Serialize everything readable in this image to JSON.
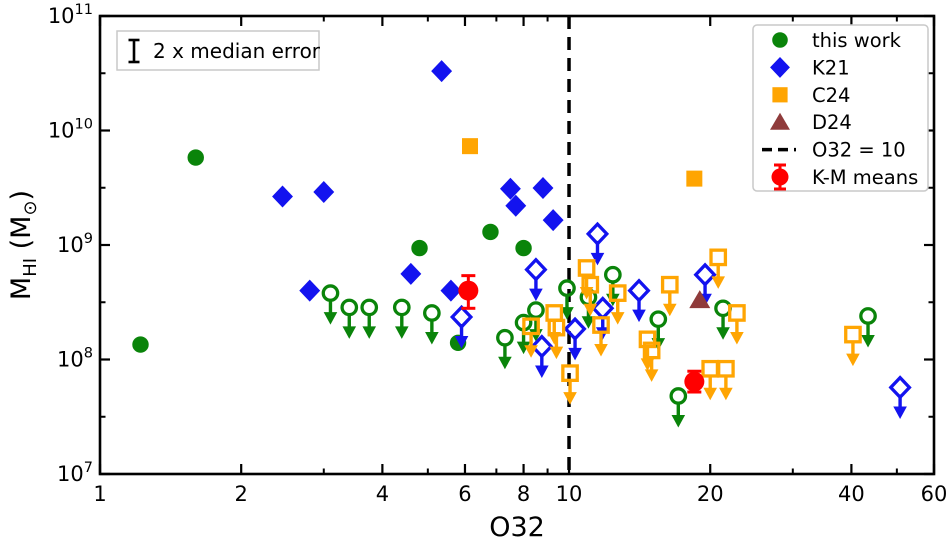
{
  "figure": {
    "annotation": {
      "label": "2 x median error"
    },
    "xlabel": "O32",
    "ylabel_parts": {
      "main": "M",
      "sub": "HI",
      "unit_open": " (M",
      "unit_sub": "⊙",
      "unit_close": ")"
    },
    "colors": {
      "green": "#0a840a",
      "blue": "#1313ef",
      "orange": "#ffa502",
      "dark_red": "#8f3b3b",
      "red": "#ff0000",
      "box_border": "#c9c9c9",
      "axis": "#000000"
    },
    "legend": [
      {
        "label": "this work",
        "marker": "circle",
        "color": "#0a840a"
      },
      {
        "label": "K21",
        "marker": "diamond",
        "color": "#1313ef"
      },
      {
        "label": "C24",
        "marker": "square",
        "color": "#ffa502"
      },
      {
        "label": "D24",
        "marker": "triangle",
        "color": "#8f3b3b"
      },
      {
        "label": "O32 = 10",
        "marker": "dashed-line",
        "color": "#000000"
      },
      {
        "label": "K-M means",
        "marker": "circle-errorbar",
        "color": "#ff0000"
      }
    ]
  },
  "chart_data": {
    "type": "scatter",
    "title": "",
    "xlabel": "O32",
    "ylabel": "M_HI (M_sun)",
    "x_scale": "log",
    "y_scale": "log",
    "xlim": [
      1,
      60
    ],
    "ylim": [
      10000000.0,
      100000000000.0
    ],
    "grid": false,
    "legend_position": "upper right",
    "x_major_ticks": [
      1,
      2,
      4,
      6,
      8,
      10,
      20,
      40,
      60
    ],
    "x_minor_ticks": [
      3,
      5,
      7,
      9,
      30,
      50
    ],
    "y_major_tick_exponents": [
      7,
      8,
      9,
      10,
      11
    ],
    "y_minor_tick_exponents": [
      7.5,
      8.5,
      9.5,
      10.5
    ],
    "vline": {
      "x": 10,
      "style": "dashed",
      "label": "O32 = 10"
    },
    "annotation": {
      "label": "2 x median error",
      "errorbar_decades": 0.19
    },
    "series": [
      {
        "name": "this work",
        "marker": "circle",
        "color": "#0a840a",
        "filled": true,
        "upper_limit": false,
        "points": [
          [
            1.22,
            135000000.0
          ],
          [
            1.6,
            5800000000.0
          ],
          [
            4.8,
            940000000.0
          ],
          [
            5.8,
            140000000.0
          ],
          [
            6.8,
            1300000000.0
          ],
          [
            8.0,
            940000000.0
          ]
        ]
      },
      {
        "name": "this work (HI upper limits)",
        "marker": "circle",
        "color": "#0a840a",
        "filled": false,
        "upper_limit": true,
        "points": [
          [
            3.1,
            380000000.0
          ],
          [
            3.4,
            285000000.0
          ],
          [
            3.75,
            285000000.0
          ],
          [
            4.4,
            285000000.0
          ],
          [
            5.1,
            255000000.0
          ],
          [
            7.3,
            155000000.0
          ],
          [
            8.0,
            210000000.0
          ],
          [
            8.5,
            270000000.0
          ],
          [
            9.9,
            420000000.0
          ],
          [
            11.0,
            350000000.0
          ],
          [
            12.4,
            550000000.0
          ],
          [
            15.5,
            225000000.0
          ],
          [
            17.1,
            48000000.0
          ],
          [
            21.3,
            280000000.0
          ],
          [
            43.4,
            240000000.0
          ]
        ]
      },
      {
        "name": "K21",
        "marker": "diamond",
        "color": "#1313ef",
        "filled": true,
        "upper_limit": false,
        "points": [
          [
            2.45,
            2650000000.0
          ],
          [
            2.8,
            400000000.0
          ],
          [
            3.0,
            2900000000.0
          ],
          [
            4.6,
            560000000.0
          ],
          [
            5.35,
            33000000000.0
          ],
          [
            5.6,
            400000000.0
          ],
          [
            7.5,
            3100000000.0
          ],
          [
            7.7,
            2200000000.0
          ],
          [
            8.8,
            3150000000.0
          ],
          [
            9.25,
            1650000000.0
          ]
        ]
      },
      {
        "name": "K21 (HI upper limits)",
        "marker": "diamond",
        "color": "#1313ef",
        "filled": false,
        "upper_limit": true,
        "points": [
          [
            5.9,
            235000000.0
          ],
          [
            8.5,
            610000000.0
          ],
          [
            8.75,
            130000000.0
          ],
          [
            10.3,
            185000000.0
          ],
          [
            11.5,
            1250000000.0
          ],
          [
            11.8,
            280000000.0
          ],
          [
            14.1,
            400000000.0
          ],
          [
            19.5,
            550000000.0
          ],
          [
            50.8,
            57000000.0
          ]
        ]
      },
      {
        "name": "C24",
        "marker": "square",
        "color": "#ffa502",
        "filled": true,
        "upper_limit": false,
        "points": [
          [
            6.15,
            7300000000.0
          ],
          [
            18.5,
            3800000000.0
          ]
        ]
      },
      {
        "name": "C24 (HI upper limits)",
        "marker": "square",
        "color": "#ffa502",
        "filled": false,
        "upper_limit": true,
        "points": [
          [
            8.3,
            195000000.0
          ],
          [
            9.3,
            255000000.0
          ],
          [
            9.4,
            190000000.0
          ],
          [
            10.05,
            76000000.0
          ],
          [
            10.9,
            630000000.0
          ],
          [
            11.1,
            450000000.0
          ],
          [
            11.7,
            200000000.0
          ],
          [
            12.7,
            380000000.0
          ],
          [
            14.7,
            150000000.0
          ],
          [
            15.0,
            120000000.0
          ],
          [
            16.4,
            450000000.0
          ],
          [
            20.0,
            83000000.0
          ],
          [
            20.8,
            780000000.0
          ],
          [
            21.6,
            83000000.0
          ],
          [
            22.8,
            255000000.0
          ],
          [
            40.3,
            165000000.0
          ]
        ]
      },
      {
        "name": "D24",
        "marker": "triangle",
        "color": "#8f3b3b",
        "filled": true,
        "upper_limit": false,
        "points": [
          [
            19.0,
            330000000.0
          ]
        ]
      },
      {
        "name": "K-M means",
        "marker": "circle",
        "color": "#ff0000",
        "filled": true,
        "upper_limit": false,
        "error_bars": true,
        "points_err": [
          {
            "x": 6.1,
            "y": 400000000.0,
            "y_lo": 280000000.0,
            "y_hi": 540000000.0
          },
          {
            "x": 18.5,
            "y": 64000000.0,
            "y_lo": 52000000.0,
            "y_hi": 79000000.0
          }
        ]
      }
    ]
  }
}
